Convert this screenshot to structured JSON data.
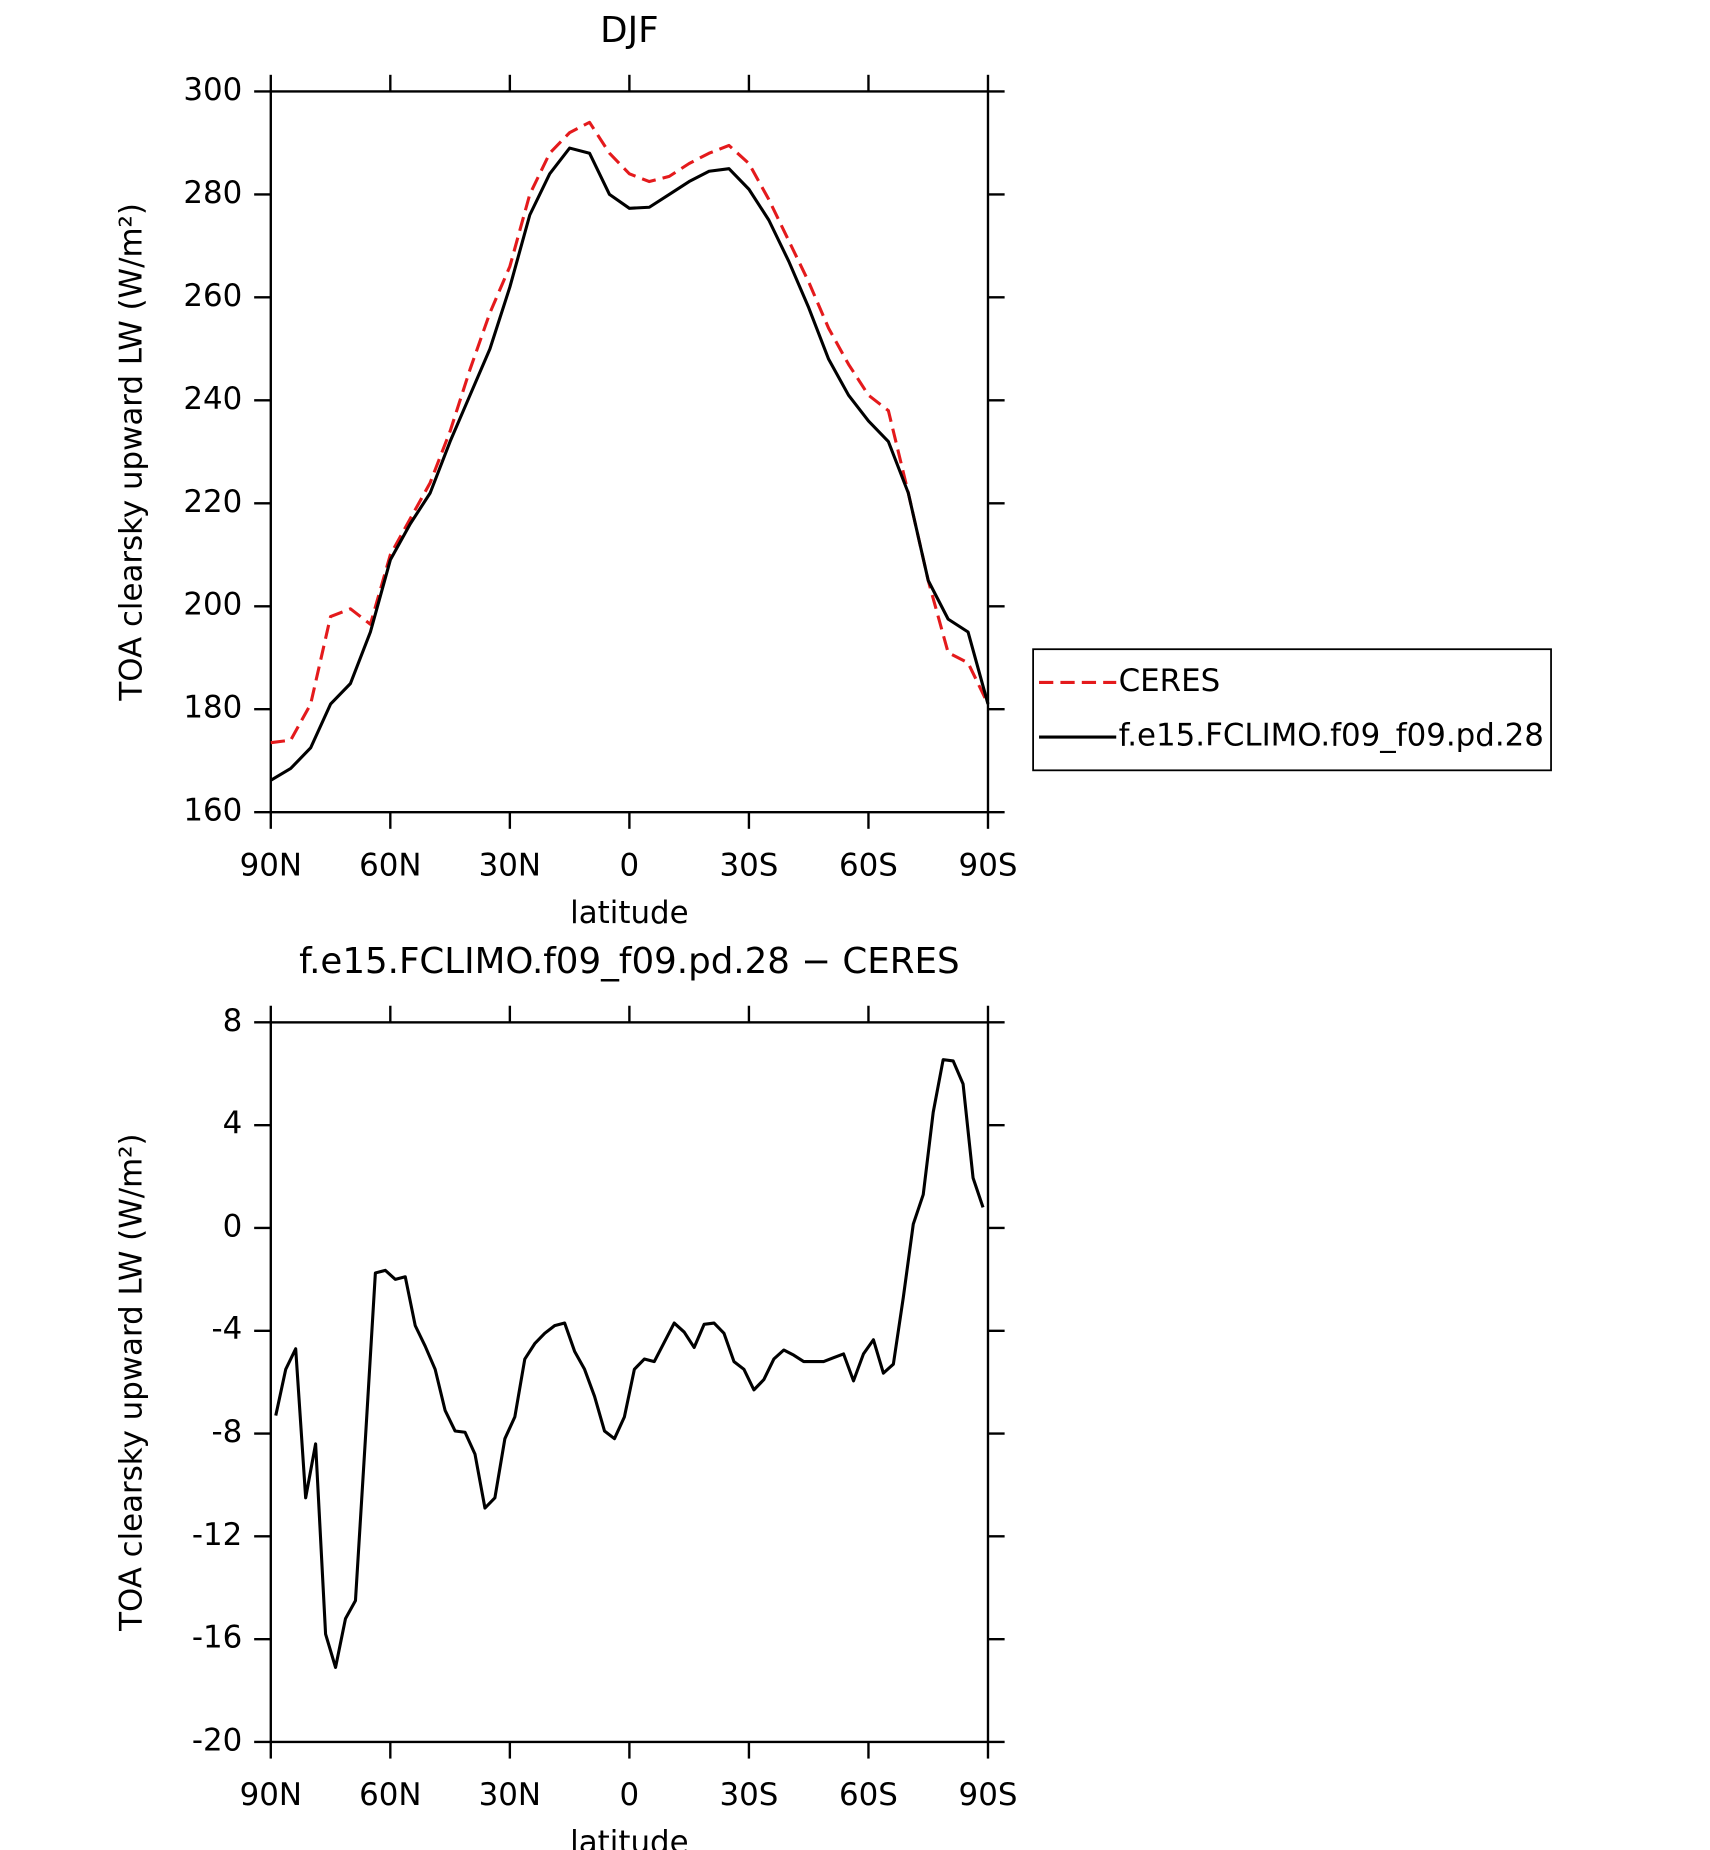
{
  "chart_data": [
    {
      "type": "line",
      "title": "DJF",
      "xlabel": "latitude",
      "ylabel": "TOA clearsky upward LW (W/m²)",
      "x": [
        90,
        85,
        80,
        75,
        70,
        65,
        60,
        55,
        50,
        45,
        40,
        35,
        30,
        25,
        20,
        15,
        10,
        5,
        0,
        -5,
        -10,
        -15,
        -20,
        -25,
        -30,
        -35,
        -40,
        -45,
        -50,
        -55,
        -60,
        -65,
        -70,
        -75,
        -80,
        -85,
        -90
      ],
      "series": [
        {
          "name": "CERES",
          "color": "#e41a1c",
          "line_style": "dashed",
          "values": [
            173.5,
            174,
            181,
            198,
            199.5,
            196.5,
            210,
            217,
            224,
            234,
            246,
            257,
            266,
            280,
            288,
            292,
            294,
            288,
            284,
            282.5,
            283.5,
            286,
            288,
            289.5,
            286,
            279,
            271,
            263,
            254,
            247,
            241,
            238,
            222,
            205,
            191,
            189,
            181
          ]
        },
        {
          "name": "f.e15.FCLIMO.f09_f09.pd.28",
          "color": "#000000",
          "line_style": "solid",
          "values": [
            166.2,
            168.5,
            172.5,
            181,
            185,
            195,
            209,
            216,
            222,
            232,
            241,
            250,
            262,
            276,
            284,
            289,
            288,
            280,
            277.3,
            277.5,
            280,
            282.5,
            284.5,
            285,
            281,
            275,
            267,
            258,
            248,
            241,
            236,
            232,
            222,
            205,
            197.5,
            195,
            181
          ]
        }
      ],
      "xlim": [
        90,
        -90
      ],
      "xticks": [
        {
          "value": 90,
          "label": "90N"
        },
        {
          "value": 60,
          "label": "60N"
        },
        {
          "value": 30,
          "label": "30N"
        },
        0,
        {
          "value": -30,
          "label": "30S"
        },
        {
          "value": -60,
          "label": "60S"
        },
        {
          "value": -90,
          "label": "90S"
        }
      ],
      "ylim": [
        160,
        300
      ],
      "yticks": [
        160,
        180,
        200,
        220,
        240,
        260,
        280,
        300
      ],
      "grid": false,
      "legend": "right"
    },
    {
      "type": "line",
      "title": "f.e15.FCLIMO.f09_f09.pd.28 − CERES",
      "xlabel": "latitude",
      "ylabel": "TOA clearsky upward LW (W/m²)",
      "x": [
        88.75,
        86.25,
        83.75,
        81.25,
        78.75,
        76.25,
        73.75,
        71.25,
        68.75,
        66.25,
        63.75,
        61.25,
        58.75,
        56.25,
        53.75,
        51.25,
        48.75,
        46.25,
        43.75,
        41.25,
        38.75,
        36.25,
        33.75,
        31.25,
        28.75,
        26.25,
        23.75,
        21.25,
        18.75,
        16.25,
        13.75,
        11.25,
        8.75,
        6.25,
        3.75,
        1.25,
        -1.25,
        -3.75,
        -6.25,
        -8.75,
        -11.25,
        -13.75,
        -16.25,
        -18.75,
        -21.25,
        -23.75,
        -26.25,
        -28.75,
        -31.25,
        -33.75,
        -36.25,
        -38.75,
        -41.25,
        -43.75,
        -46.25,
        -48.75,
        -51.25,
        -53.75,
        -56.25,
        -58.75,
        -61.25,
        -63.75,
        -66.25,
        -68.75,
        -71.25,
        -73.75,
        -76.25,
        -78.75,
        -81.25,
        -83.75,
        -86.25,
        -88.75
      ],
      "values": [
        -7.3,
        -5.5,
        -4.7,
        -10.5,
        -8.4,
        -15.8,
        -17.1,
        -15.2,
        -14.5,
        -8.2,
        -1.75,
        -1.65,
        -2,
        -1.9,
        -3.8,
        -4.6,
        -5.5,
        -7.1,
        -7.9,
        -7.95,
        -8.8,
        -10.9,
        -10.5,
        -8.2,
        -7.35,
        -5.1,
        -4.5,
        -4.1,
        -3.8,
        -3.7,
        -4.8,
        -5.5,
        -6.55,
        -7.9,
        -8.2,
        -7.35,
        -5.5,
        -5.1,
        -5.2,
        -4.45,
        -3.7,
        -4.05,
        -4.65,
        -3.75,
        -3.7,
        -4.1,
        -5.2,
        -5.5,
        -6.3,
        -5.9,
        -5.1,
        -4.75,
        -4.95,
        -5.2,
        -5.2,
        -5.2,
        -5.05,
        -4.9,
        -5.95,
        -4.9,
        -4.35,
        -5.65,
        -5.3,
        -2.7,
        0.15,
        1.3,
        4.5,
        6.55,
        6.5,
        5.6,
        1.95,
        0.8
      ],
      "color": "#000000",
      "xlim": [
        90,
        -90
      ],
      "xticks": [
        {
          "value": 90,
          "label": "90N"
        },
        {
          "value": 60,
          "label": "60N"
        },
        {
          "value": 30,
          "label": "30N"
        },
        0,
        {
          "value": -30,
          "label": "30S"
        },
        {
          "value": -60,
          "label": "60S"
        },
        {
          "value": -90,
          "label": "90S"
        }
      ],
      "ylim": [
        -20,
        8
      ],
      "yticks": [
        -20,
        -16,
        -12,
        -8,
        -4,
        0,
        4,
        8
      ],
      "grid": false
    }
  ]
}
